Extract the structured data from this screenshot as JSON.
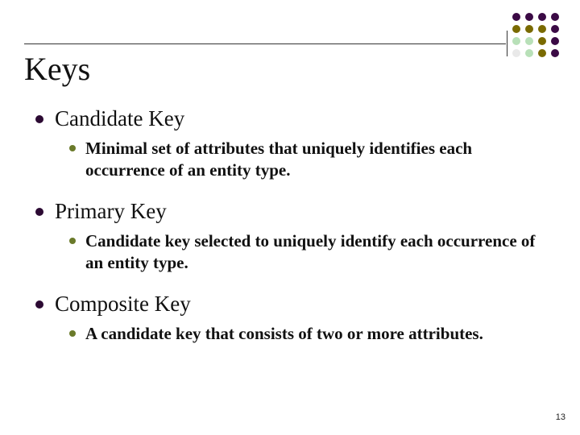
{
  "title": "Keys",
  "pageNumber": "13",
  "decoration": {
    "rows": [
      [
        "#3b0a45",
        "#3b0a45",
        "#3b0a45",
        "#3b0a45"
      ],
      [
        "#7a6a00",
        "#7a6a00",
        "#7a6a00",
        "#3b0a45"
      ],
      [
        "#b8e0b8",
        "#b8e0b8",
        "#7a6a00",
        "#3b0a45"
      ],
      [
        "#e9e9e9",
        "#b8e0b8",
        "#7a6a00",
        "#3b0a45"
      ]
    ]
  },
  "bulletColors": {
    "l1": "#2c0a33",
    "l2": "#6a7a2a"
  },
  "items": [
    {
      "label": "Candidate Key",
      "sub": "Minimal set of attributes that uniquely identifies each occurrence of an entity type."
    },
    {
      "label": "Primary Key",
      "sub": "Candidate key selected to uniquely identify each occurrence of an entity type."
    },
    {
      "label": "Composite Key",
      "sub": "A candidate key that consists of two or more attributes."
    }
  ]
}
